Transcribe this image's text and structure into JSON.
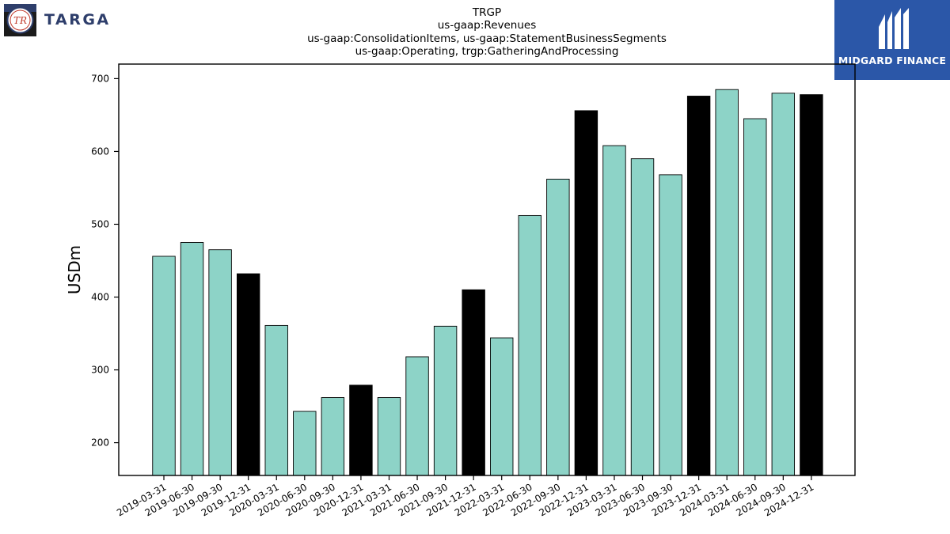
{
  "header": {
    "title_lines": [
      "TRGP",
      "us-gaap:Revenues",
      "us-gaap:ConsolidationItems, us-gaap:StatementBusinessSegments",
      "us-gaap:Operating, trgp:GatheringAndProcessing"
    ]
  },
  "logos": {
    "left_name": "TARGA",
    "left_mark": "TR",
    "right_name": "MIDGARD FINANCE"
  },
  "colors": {
    "quarter_bar": "#8dd3c7",
    "year_end_bar": "#000000",
    "brand_right": "#2b57a8",
    "brand_left": "#2e3e6b"
  },
  "chart_data": {
    "type": "bar",
    "ylabel": "USDm",
    "xlabel": "",
    "ylim": [
      155,
      720
    ],
    "yticks": [
      200,
      300,
      400,
      500,
      600,
      700
    ],
    "grid": false,
    "categories": [
      "2019-03-31",
      "2019-06-30",
      "2019-09-30",
      "2019-12-31",
      "2020-03-31",
      "2020-06-30",
      "2020-09-30",
      "2020-12-31",
      "2021-03-31",
      "2021-06-30",
      "2021-09-30",
      "2021-12-31",
      "2022-03-31",
      "2022-06-30",
      "2022-09-30",
      "2022-12-31",
      "2023-03-31",
      "2023-06-30",
      "2023-09-30",
      "2023-12-31",
      "2024-03-31",
      "2024-06-30",
      "2024-09-30",
      "2024-12-31"
    ],
    "values": [
      456,
      475,
      465,
      432,
      361,
      243,
      262,
      279,
      262,
      318,
      360,
      410,
      344,
      512,
      562,
      656,
      608,
      590,
      568,
      676,
      685,
      645,
      680,
      678
    ],
    "year_end": [
      false,
      false,
      false,
      true,
      false,
      false,
      false,
      true,
      false,
      false,
      false,
      true,
      false,
      false,
      false,
      true,
      false,
      false,
      false,
      true,
      false,
      false,
      false,
      true
    ]
  }
}
